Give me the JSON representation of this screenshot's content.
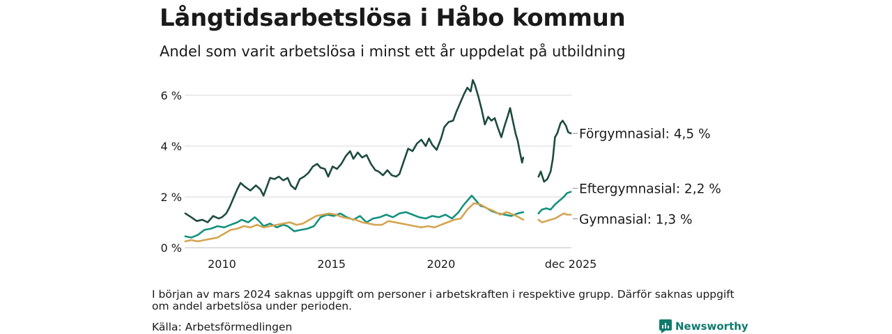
{
  "title": "Långtidsarbetslösa i Håbo kommun",
  "subtitle": "Andel som varit arbetslösa i minst ett år uppdelat på utbildning",
  "note": "I början av mars 2024 saknas uppgift om personer i arbetskraften i respektive grupp. Därför saknas uppgift om andel arbetslösa under perioden.",
  "source": "Källa: Arbetsförmedlingen",
  "brand": "Newsworthy",
  "colors": {
    "forgymnasial": "#1d4a40",
    "eftergymnasial": "#13907e",
    "gymnasial": "#d5a44f",
    "grid": "#dddddd",
    "brand": "#0f7a6c"
  },
  "chart_data": {
    "type": "line",
    "xlim": [
      2008.3,
      2025.95
    ],
    "ylim": [
      0,
      6.6
    ],
    "yticks": [
      0,
      2,
      4,
      6
    ],
    "ytick_labels": [
      "0 %",
      "2 %",
      "4 %",
      "6 %"
    ],
    "xticks": [
      2010,
      2015,
      2020,
      2025.92
    ],
    "xtick_labels": [
      "2010",
      "2015",
      "2020",
      "dec 2025"
    ],
    "gap": [
      2023.75,
      2024.45
    ],
    "series": [
      {
        "name": "Förgymnasial",
        "label": "Förgymnasial: 4,5 %",
        "color": "#1d4a40",
        "last_value": 4.5,
        "points": [
          [
            2008.33,
            1.35
          ],
          [
            2008.6,
            1.2
          ],
          [
            2008.85,
            1.05
          ],
          [
            2009.1,
            1.1
          ],
          [
            2009.35,
            1.0
          ],
          [
            2009.6,
            1.25
          ],
          [
            2009.85,
            1.15
          ],
          [
            2010.0,
            1.2
          ],
          [
            2010.2,
            1.35
          ],
          [
            2010.35,
            1.6
          ],
          [
            2010.5,
            1.9
          ],
          [
            2010.7,
            2.3
          ],
          [
            2010.85,
            2.55
          ],
          [
            2011.05,
            2.4
          ],
          [
            2011.3,
            2.25
          ],
          [
            2011.55,
            2.45
          ],
          [
            2011.75,
            2.3
          ],
          [
            2011.9,
            2.05
          ],
          [
            2012.05,
            2.4
          ],
          [
            2012.2,
            2.75
          ],
          [
            2012.4,
            2.7
          ],
          [
            2012.6,
            2.8
          ],
          [
            2012.8,
            2.65
          ],
          [
            2013.0,
            2.75
          ],
          [
            2013.15,
            2.45
          ],
          [
            2013.35,
            2.3
          ],
          [
            2013.55,
            2.7
          ],
          [
            2013.75,
            2.8
          ],
          [
            2013.95,
            2.95
          ],
          [
            2014.15,
            3.2
          ],
          [
            2014.35,
            3.3
          ],
          [
            2014.5,
            3.15
          ],
          [
            2014.7,
            3.1
          ],
          [
            2014.85,
            2.8
          ],
          [
            2015.05,
            3.2
          ],
          [
            2015.25,
            3.1
          ],
          [
            2015.45,
            3.3
          ],
          [
            2015.65,
            3.6
          ],
          [
            2015.85,
            3.8
          ],
          [
            2016.0,
            3.5
          ],
          [
            2016.2,
            3.75
          ],
          [
            2016.4,
            3.55
          ],
          [
            2016.6,
            3.65
          ],
          [
            2016.8,
            3.3
          ],
          [
            2017.0,
            3.05
          ],
          [
            2017.15,
            3.0
          ],
          [
            2017.35,
            2.85
          ],
          [
            2017.55,
            3.05
          ],
          [
            2017.75,
            2.85
          ],
          [
            2017.95,
            2.8
          ],
          [
            2018.1,
            2.9
          ],
          [
            2018.3,
            3.4
          ],
          [
            2018.5,
            3.9
          ],
          [
            2018.7,
            3.8
          ],
          [
            2018.9,
            4.1
          ],
          [
            2019.1,
            4.25
          ],
          [
            2019.3,
            4.0
          ],
          [
            2019.45,
            4.3
          ],
          [
            2019.6,
            4.05
          ],
          [
            2019.8,
            3.85
          ],
          [
            2020.0,
            4.3
          ],
          [
            2020.15,
            4.75
          ],
          [
            2020.35,
            4.95
          ],
          [
            2020.55,
            5.0
          ],
          [
            2020.7,
            5.35
          ],
          [
            2020.9,
            5.75
          ],
          [
            2021.05,
            6.05
          ],
          [
            2021.2,
            6.3
          ],
          [
            2021.35,
            6.15
          ],
          [
            2021.45,
            6.6
          ],
          [
            2021.55,
            6.4
          ],
          [
            2021.7,
            5.95
          ],
          [
            2021.85,
            5.45
          ],
          [
            2022.0,
            4.85
          ],
          [
            2022.15,
            5.15
          ],
          [
            2022.3,
            5.0
          ],
          [
            2022.45,
            5.1
          ],
          [
            2022.6,
            4.7
          ],
          [
            2022.75,
            4.35
          ],
          [
            2022.9,
            4.8
          ],
          [
            2023.05,
            5.2
          ],
          [
            2023.15,
            5.5
          ],
          [
            2023.25,
            5.1
          ],
          [
            2023.4,
            4.5
          ],
          [
            2023.5,
            4.2
          ],
          [
            2023.6,
            3.75
          ],
          [
            2023.7,
            3.35
          ],
          [
            2023.75,
            3.55
          ]
        ]
      },
      {
        "name": "Förgymnasial (efter avbrott)",
        "color": "#1d4a40",
        "points": [
          [
            2024.45,
            2.8
          ],
          [
            2024.55,
            3.0
          ],
          [
            2024.7,
            2.6
          ],
          [
            2024.85,
            2.7
          ],
          [
            2025.0,
            3.0
          ],
          [
            2025.1,
            3.5
          ],
          [
            2025.2,
            4.35
          ],
          [
            2025.3,
            4.5
          ],
          [
            2025.45,
            4.9
          ],
          [
            2025.55,
            5.0
          ],
          [
            2025.7,
            4.8
          ],
          [
            2025.8,
            4.55
          ],
          [
            2025.92,
            4.5
          ]
        ]
      },
      {
        "name": "Eftergymnasial",
        "label": "Eftergymnasial: 2,2 %",
        "color": "#13907e",
        "last_value": 2.2,
        "points": [
          [
            2008.33,
            0.45
          ],
          [
            2008.6,
            0.4
          ],
          [
            2008.9,
            0.5
          ],
          [
            2009.2,
            0.7
          ],
          [
            2009.5,
            0.75
          ],
          [
            2009.8,
            0.85
          ],
          [
            2010.1,
            0.8
          ],
          [
            2010.4,
            0.9
          ],
          [
            2010.7,
            1.0
          ],
          [
            2010.9,
            1.1
          ],
          [
            2011.2,
            1.0
          ],
          [
            2011.5,
            1.2
          ],
          [
            2011.7,
            1.05
          ],
          [
            2011.9,
            0.85
          ],
          [
            2012.2,
            0.95
          ],
          [
            2012.5,
            0.8
          ],
          [
            2012.8,
            0.9
          ],
          [
            2013.0,
            0.85
          ],
          [
            2013.3,
            0.65
          ],
          [
            2013.6,
            0.7
          ],
          [
            2013.9,
            0.75
          ],
          [
            2014.2,
            0.85
          ],
          [
            2014.5,
            1.2
          ],
          [
            2014.8,
            1.3
          ],
          [
            2015.1,
            1.25
          ],
          [
            2015.4,
            1.35
          ],
          [
            2015.7,
            1.2
          ],
          [
            2016.0,
            1.1
          ],
          [
            2016.3,
            1.25
          ],
          [
            2016.6,
            1.0
          ],
          [
            2016.9,
            1.15
          ],
          [
            2017.2,
            1.2
          ],
          [
            2017.5,
            1.3
          ],
          [
            2017.8,
            1.2
          ],
          [
            2018.1,
            1.35
          ],
          [
            2018.4,
            1.4
          ],
          [
            2018.7,
            1.3
          ],
          [
            2019.0,
            1.2
          ],
          [
            2019.3,
            1.15
          ],
          [
            2019.6,
            1.25
          ],
          [
            2019.9,
            1.2
          ],
          [
            2020.2,
            1.3
          ],
          [
            2020.5,
            1.15
          ],
          [
            2020.8,
            1.4
          ],
          [
            2021.0,
            1.65
          ],
          [
            2021.2,
            1.85
          ],
          [
            2021.4,
            2.05
          ],
          [
            2021.6,
            1.85
          ],
          [
            2021.8,
            1.65
          ],
          [
            2022.0,
            1.6
          ],
          [
            2022.3,
            1.45
          ],
          [
            2022.6,
            1.35
          ],
          [
            2022.9,
            1.3
          ],
          [
            2023.2,
            1.25
          ],
          [
            2023.5,
            1.35
          ],
          [
            2023.75,
            1.4
          ]
        ]
      },
      {
        "name": "Eftergymnasial (efter avbrott)",
        "color": "#13907e",
        "points": [
          [
            2024.45,
            1.35
          ],
          [
            2024.6,
            1.5
          ],
          [
            2024.8,
            1.55
          ],
          [
            2025.0,
            1.5
          ],
          [
            2025.2,
            1.7
          ],
          [
            2025.4,
            1.85
          ],
          [
            2025.6,
            2.0
          ],
          [
            2025.75,
            2.15
          ],
          [
            2025.92,
            2.2
          ]
        ]
      },
      {
        "name": "Gymnasial",
        "label": "Gymnasial: 1,3 %",
        "color": "#d5a44f",
        "last_value": 1.3,
        "points": [
          [
            2008.33,
            0.25
          ],
          [
            2008.6,
            0.3
          ],
          [
            2008.9,
            0.25
          ],
          [
            2009.2,
            0.3
          ],
          [
            2009.5,
            0.35
          ],
          [
            2009.8,
            0.4
          ],
          [
            2010.1,
            0.55
          ],
          [
            2010.4,
            0.7
          ],
          [
            2010.7,
            0.75
          ],
          [
            2011.0,
            0.85
          ],
          [
            2011.3,
            0.8
          ],
          [
            2011.6,
            0.9
          ],
          [
            2011.9,
            0.8
          ],
          [
            2012.2,
            0.85
          ],
          [
            2012.5,
            0.9
          ],
          [
            2012.8,
            0.95
          ],
          [
            2013.1,
            1.0
          ],
          [
            2013.4,
            0.9
          ],
          [
            2013.7,
            0.95
          ],
          [
            2014.0,
            1.1
          ],
          [
            2014.3,
            1.25
          ],
          [
            2014.6,
            1.3
          ],
          [
            2014.9,
            1.35
          ],
          [
            2015.2,
            1.3
          ],
          [
            2015.5,
            1.2
          ],
          [
            2015.8,
            1.15
          ],
          [
            2016.1,
            1.1
          ],
          [
            2016.4,
            1.0
          ],
          [
            2016.7,
            0.95
          ],
          [
            2017.0,
            0.9
          ],
          [
            2017.3,
            0.9
          ],
          [
            2017.6,
            1.05
          ],
          [
            2017.9,
            1.0
          ],
          [
            2018.2,
            0.95
          ],
          [
            2018.5,
            0.9
          ],
          [
            2018.8,
            0.85
          ],
          [
            2019.1,
            0.8
          ],
          [
            2019.4,
            0.85
          ],
          [
            2019.7,
            0.8
          ],
          [
            2020.0,
            0.9
          ],
          [
            2020.3,
            1.0
          ],
          [
            2020.6,
            1.1
          ],
          [
            2020.9,
            1.15
          ],
          [
            2021.2,
            1.5
          ],
          [
            2021.5,
            1.75
          ],
          [
            2021.8,
            1.7
          ],
          [
            2022.1,
            1.55
          ],
          [
            2022.4,
            1.45
          ],
          [
            2022.7,
            1.3
          ],
          [
            2023.0,
            1.4
          ],
          [
            2023.3,
            1.3
          ],
          [
            2023.55,
            1.2
          ],
          [
            2023.75,
            1.1
          ]
        ]
      },
      {
        "name": "Gymnasial (efter avbrott)",
        "color": "#d5a44f",
        "points": [
          [
            2024.45,
            1.1
          ],
          [
            2024.6,
            1.0
          ],
          [
            2024.8,
            1.05
          ],
          [
            2025.0,
            1.1
          ],
          [
            2025.2,
            1.15
          ],
          [
            2025.4,
            1.25
          ],
          [
            2025.6,
            1.35
          ],
          [
            2025.75,
            1.3
          ],
          [
            2025.92,
            1.3
          ]
        ]
      }
    ]
  }
}
